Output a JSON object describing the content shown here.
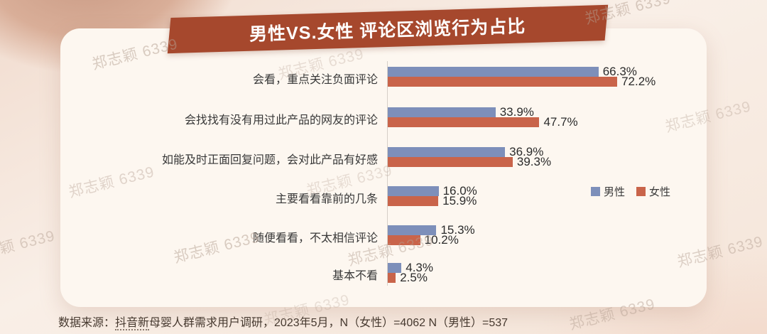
{
  "watermark_text": "郑志颖 6339",
  "chart_data": {
    "type": "bar",
    "orientation": "horizontal",
    "title": "男性VS.女性 评论区浏览行为占比",
    "categories": [
      "会看，重点关注负面评论",
      "会找找有没有用过此产品的网友的评论",
      "如能及时正面回复问题，会对此产品有好感",
      "主要看看靠前的几条",
      "随便看看，不太相信评论",
      "基本不看"
    ],
    "series": [
      {
        "name": "男性",
        "color": "#7d8fba",
        "values": [
          66.3,
          33.9,
          36.9,
          16.0,
          15.3,
          4.3
        ]
      },
      {
        "name": "女性",
        "color": "#c9644a",
        "values": [
          72.2,
          47.7,
          39.3,
          15.9,
          10.2,
          2.5
        ]
      }
    ],
    "value_suffix": "%",
    "xlim": [
      0,
      80
    ],
    "grid": false,
    "legend_position": "middle-right"
  },
  "legend": {
    "items": [
      {
        "label": "男性",
        "color": "#7d8fba"
      },
      {
        "label": "女性",
        "color": "#c9644a"
      }
    ]
  },
  "source_note": {
    "prefix": "数据来源：",
    "underlined_segment": "抖音新",
    "rest": "母婴人群需求用户调研，2023年5月，N（女性）=4062 N（男性）=537"
  },
  "colors": {
    "male_bar": "#7d8fba",
    "female_bar": "#c9644a",
    "banner": "#a6482d",
    "panel": "#fdf7f0"
  }
}
